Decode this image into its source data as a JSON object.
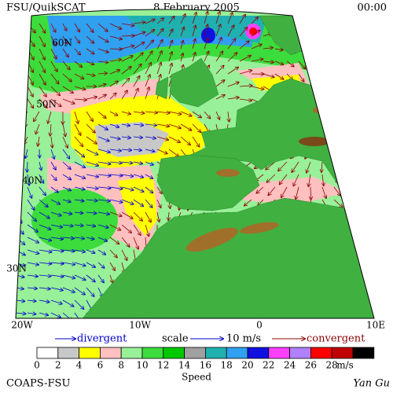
{
  "header": {
    "left": "FSU/QuikSCAT",
    "center": "8 February 2005",
    "right": "00:00"
  },
  "map": {
    "lat_labels": [
      "60N",
      "50N",
      "40N",
      "30N"
    ],
    "lon_labels": [
      "20W",
      "10W",
      "0",
      "10E"
    ]
  },
  "legend": {
    "divergent": "divergent",
    "scale": "scale",
    "scale_value": "10 m/s",
    "convergent": "convergent"
  },
  "colorbar": {
    "title": "Speed",
    "unit": "m/s",
    "ticks": [
      0,
      2,
      4,
      6,
      8,
      10,
      12,
      14,
      16,
      18,
      20,
      22,
      24,
      26,
      28
    ],
    "colors": [
      "#ffffff",
      "#c8c8c8",
      "#ffff00",
      "#ffc0c0",
      "#98f098",
      "#3cdc3c",
      "#00c800",
      "#a0a0a0",
      "#20b0b0",
      "#30a0f0",
      "#1010e0",
      "#ff40ff",
      "#b080ff",
      "#ff0000",
      "#c00000",
      "#000000"
    ]
  },
  "footer": {
    "left": "COAPS-FSU",
    "right": "Yan Gu"
  }
}
